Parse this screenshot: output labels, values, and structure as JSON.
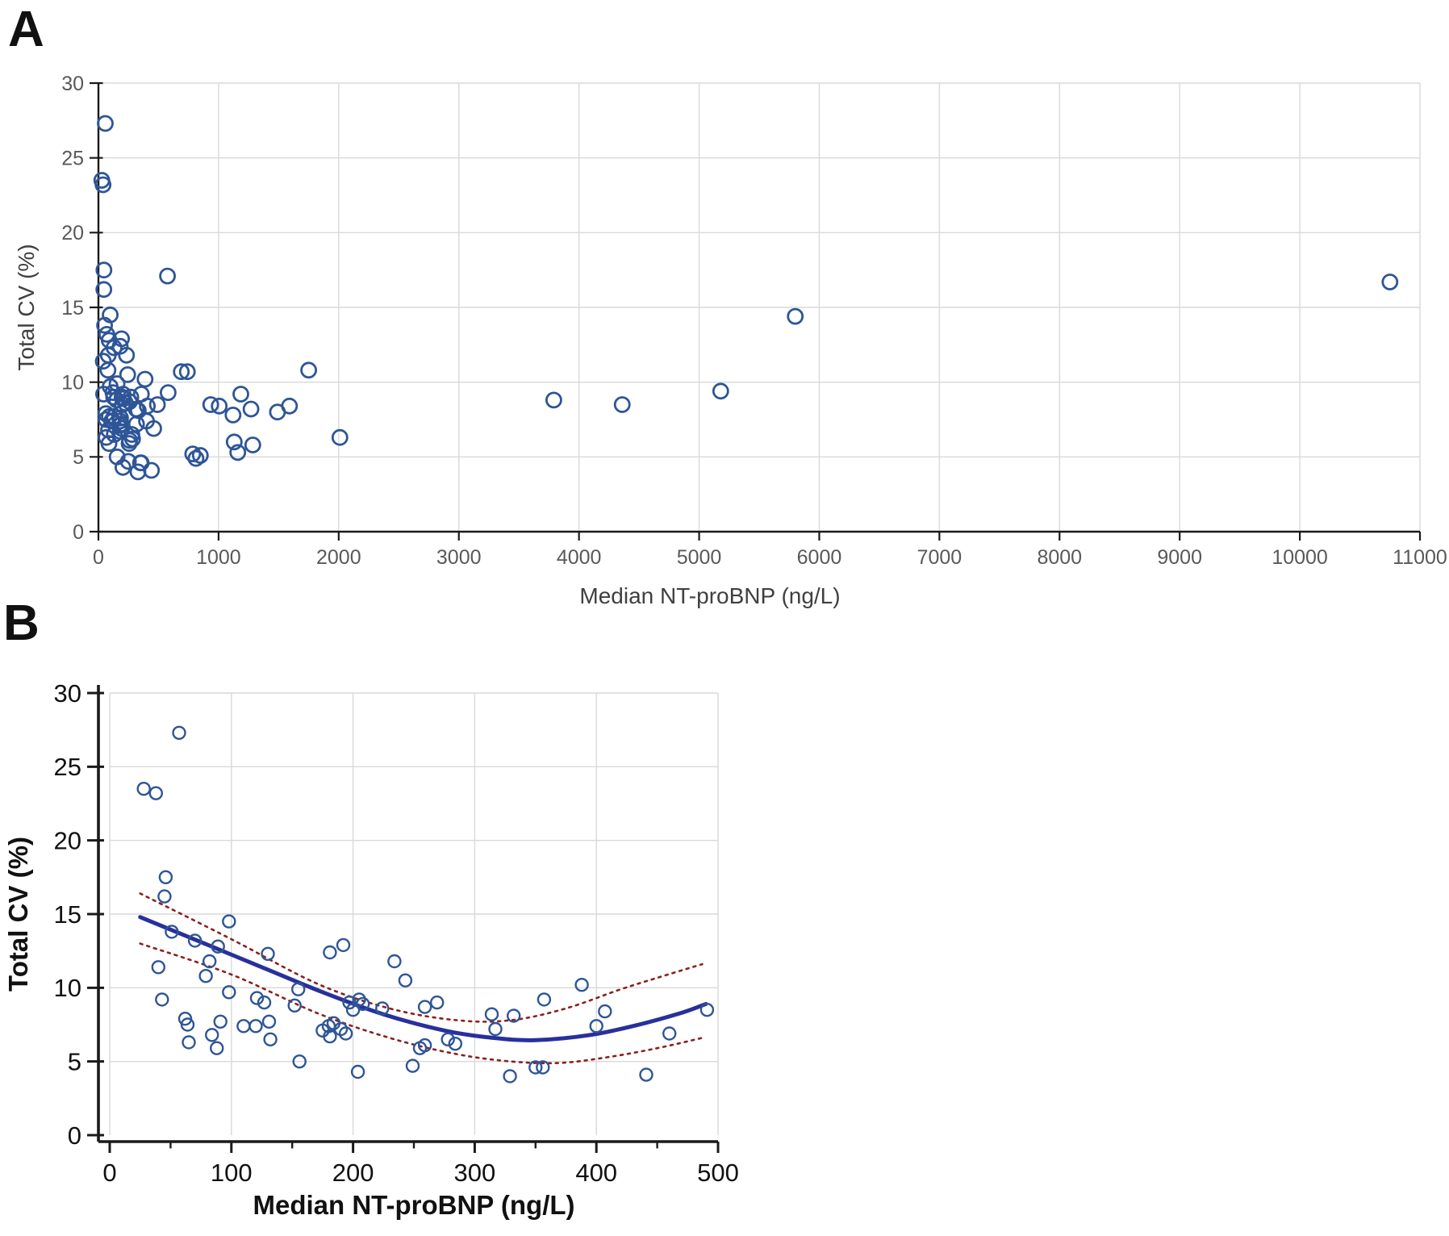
{
  "figure": {
    "panel_a_label": "A",
    "panel_b_label": "B"
  },
  "colors": {
    "point_stroke": "#2e5597",
    "fit_line": "#28309c",
    "confidence_band": "#8b2020",
    "gridline": "#d9d9d9",
    "axis": "#1a1a1a",
    "tick_label_a": "#595959",
    "tick_label_b": "#111111"
  },
  "chart_data": [
    {
      "panel_label": "A",
      "type": "scatter",
      "title": "",
      "xlabel": "Median NT-proBNP (ng/L)",
      "ylabel": "Total CV (%)",
      "xlim": [
        0,
        11000
      ],
      "ylim": [
        0,
        30
      ],
      "xticks": [
        0,
        1000,
        2000,
        3000,
        4000,
        5000,
        6000,
        7000,
        8000,
        9000,
        10000,
        11000
      ],
      "yticks": [
        0,
        5,
        10,
        15,
        20,
        25,
        30
      ],
      "grid": true,
      "legend": "none",
      "marker": "open-circle",
      "points": [
        [
          28,
          23.5
        ],
        [
          38,
          23.2
        ],
        [
          57,
          27.3
        ],
        [
          46,
          17.5
        ],
        [
          45,
          16.2
        ],
        [
          40,
          11.4
        ],
        [
          43,
          9.2
        ],
        [
          51,
          13.8
        ],
        [
          70,
          13.2
        ],
        [
          89,
          12.8
        ],
        [
          98,
          14.5
        ],
        [
          82,
          11.8
        ],
        [
          79,
          10.8
        ],
        [
          98,
          9.7
        ],
        [
          62,
          7.9
        ],
        [
          64,
          7.5
        ],
        [
          65,
          6.3
        ],
        [
          84,
          6.8
        ],
        [
          88,
          5.9
        ],
        [
          91,
          7.7
        ],
        [
          110,
          7.4
        ],
        [
          120,
          7.4
        ],
        [
          121,
          9.3
        ],
        [
          127,
          9.0
        ],
        [
          130,
          12.3
        ],
        [
          131,
          7.7
        ],
        [
          132,
          6.5
        ],
        [
          152,
          8.8
        ],
        [
          155,
          9.9
        ],
        [
          156,
          5.0
        ],
        [
          175,
          7.1
        ],
        [
          180,
          7.4
        ],
        [
          184,
          7.6
        ],
        [
          181,
          6.7
        ],
        [
          190,
          7.2
        ],
        [
          181,
          12.4
        ],
        [
          192,
          12.9
        ],
        [
          197,
          9.0
        ],
        [
          200,
          8.5
        ],
        [
          205,
          9.2
        ],
        [
          208,
          8.9
        ],
        [
          224,
          8.6
        ],
        [
          194,
          6.9
        ],
        [
          204,
          4.3
        ],
        [
          234,
          11.8
        ],
        [
          243,
          10.5
        ],
        [
          249,
          4.7
        ],
        [
          255,
          5.9
        ],
        [
          259,
          6.1
        ],
        [
          259,
          8.7
        ],
        [
          269,
          9.0
        ],
        [
          278,
          6.5
        ],
        [
          284,
          6.2
        ],
        [
          314,
          8.2
        ],
        [
          317,
          7.2
        ],
        [
          329,
          4.0
        ],
        [
          332,
          8.1
        ],
        [
          350,
          4.6
        ],
        [
          356,
          4.6
        ],
        [
          357,
          9.2
        ],
        [
          388,
          10.2
        ],
        [
          400,
          7.4
        ],
        [
          407,
          8.4
        ],
        [
          441,
          4.1
        ],
        [
          460,
          6.9
        ],
        [
          491,
          8.5
        ],
        [
          575,
          17.1
        ],
        [
          580,
          9.3
        ],
        [
          690,
          10.7
        ],
        [
          740,
          10.7
        ],
        [
          785,
          5.2
        ],
        [
          812,
          4.9
        ],
        [
          848,
          5.1
        ],
        [
          935,
          8.5
        ],
        [
          1005,
          8.4
        ],
        [
          1120,
          7.8
        ],
        [
          1130,
          6.0
        ],
        [
          1160,
          5.3
        ],
        [
          1185,
          9.2
        ],
        [
          1270,
          8.2
        ],
        [
          1285,
          5.8
        ],
        [
          1490,
          8.0
        ],
        [
          1590,
          8.4
        ],
        [
          1750,
          10.8
        ],
        [
          2010,
          6.3
        ],
        [
          3790,
          8.8
        ],
        [
          4360,
          8.5
        ],
        [
          5180,
          9.4
        ],
        [
          5800,
          14.4
        ],
        [
          10750,
          16.7
        ]
      ]
    },
    {
      "panel_label": "B",
      "type": "scatter",
      "title": "",
      "xlabel": "Median NT-proBNP (ng/L)",
      "ylabel": "Total CV (%)",
      "xlim": [
        0,
        500
      ],
      "ylim": [
        0,
        30
      ],
      "xticks": [
        0,
        100,
        200,
        300,
        400,
        500
      ],
      "xticks_minor": [
        50,
        150,
        250,
        350,
        450
      ],
      "yticks": [
        0,
        5,
        10,
        15,
        20,
        25,
        30
      ],
      "grid": true,
      "legend": "none",
      "marker": "open-circle",
      "points": [
        [
          28,
          23.5
        ],
        [
          38,
          23.2
        ],
        [
          57,
          27.3
        ],
        [
          46,
          17.5
        ],
        [
          45,
          16.2
        ],
        [
          40,
          11.4
        ],
        [
          43,
          9.2
        ],
        [
          51,
          13.8
        ],
        [
          70,
          13.2
        ],
        [
          89,
          12.8
        ],
        [
          98,
          14.5
        ],
        [
          82,
          11.8
        ],
        [
          79,
          10.8
        ],
        [
          98,
          9.7
        ],
        [
          62,
          7.9
        ],
        [
          64,
          7.5
        ],
        [
          65,
          6.3
        ],
        [
          84,
          6.8
        ],
        [
          88,
          5.9
        ],
        [
          91,
          7.7
        ],
        [
          110,
          7.4
        ],
        [
          120,
          7.4
        ],
        [
          121,
          9.3
        ],
        [
          127,
          9.0
        ],
        [
          130,
          12.3
        ],
        [
          131,
          7.7
        ],
        [
          132,
          6.5
        ],
        [
          152,
          8.8
        ],
        [
          155,
          9.9
        ],
        [
          156,
          5.0
        ],
        [
          175,
          7.1
        ],
        [
          180,
          7.4
        ],
        [
          184,
          7.6
        ],
        [
          181,
          6.7
        ],
        [
          190,
          7.2
        ],
        [
          181,
          12.4
        ],
        [
          192,
          12.9
        ],
        [
          197,
          9.0
        ],
        [
          200,
          8.5
        ],
        [
          205,
          9.2
        ],
        [
          208,
          8.9
        ],
        [
          224,
          8.6
        ],
        [
          194,
          6.9
        ],
        [
          204,
          4.3
        ],
        [
          234,
          11.8
        ],
        [
          243,
          10.5
        ],
        [
          249,
          4.7
        ],
        [
          255,
          5.9
        ],
        [
          259,
          6.1
        ],
        [
          259,
          8.7
        ],
        [
          269,
          9.0
        ],
        [
          278,
          6.5
        ],
        [
          284,
          6.2
        ],
        [
          314,
          8.2
        ],
        [
          317,
          7.2
        ],
        [
          329,
          4.0
        ],
        [
          332,
          8.1
        ],
        [
          350,
          4.6
        ],
        [
          356,
          4.6
        ],
        [
          357,
          9.2
        ],
        [
          388,
          10.2
        ],
        [
          400,
          7.4
        ],
        [
          407,
          8.4
        ],
        [
          441,
          4.1
        ],
        [
          460,
          6.9
        ],
        [
          491,
          8.5
        ]
      ],
      "fit_line": [
        [
          25,
          14.8
        ],
        [
          75,
          13.1
        ],
        [
          125,
          11.4
        ],
        [
          175,
          9.7
        ],
        [
          225,
          8.2
        ],
        [
          275,
          7.1
        ],
        [
          315,
          6.6
        ],
        [
          350,
          6.45
        ],
        [
          395,
          6.8
        ],
        [
          435,
          7.5
        ],
        [
          470,
          8.3
        ],
        [
          490,
          8.9
        ]
      ],
      "band_upper": [
        [
          25,
          16.4
        ],
        [
          100,
          13.3
        ],
        [
          170,
          10.3
        ],
        [
          230,
          8.6
        ],
        [
          285,
          7.8
        ],
        [
          330,
          7.8
        ],
        [
          375,
          8.6
        ],
        [
          420,
          9.9
        ],
        [
          455,
          10.8
        ],
        [
          487,
          11.6
        ]
      ],
      "band_lower": [
        [
          25,
          13.0
        ],
        [
          100,
          10.9
        ],
        [
          170,
          8.3
        ],
        [
          230,
          6.6
        ],
        [
          285,
          5.5
        ],
        [
          330,
          5.0
        ],
        [
          370,
          4.9
        ],
        [
          410,
          5.3
        ],
        [
          450,
          5.9
        ],
        [
          487,
          6.6
        ]
      ]
    }
  ]
}
